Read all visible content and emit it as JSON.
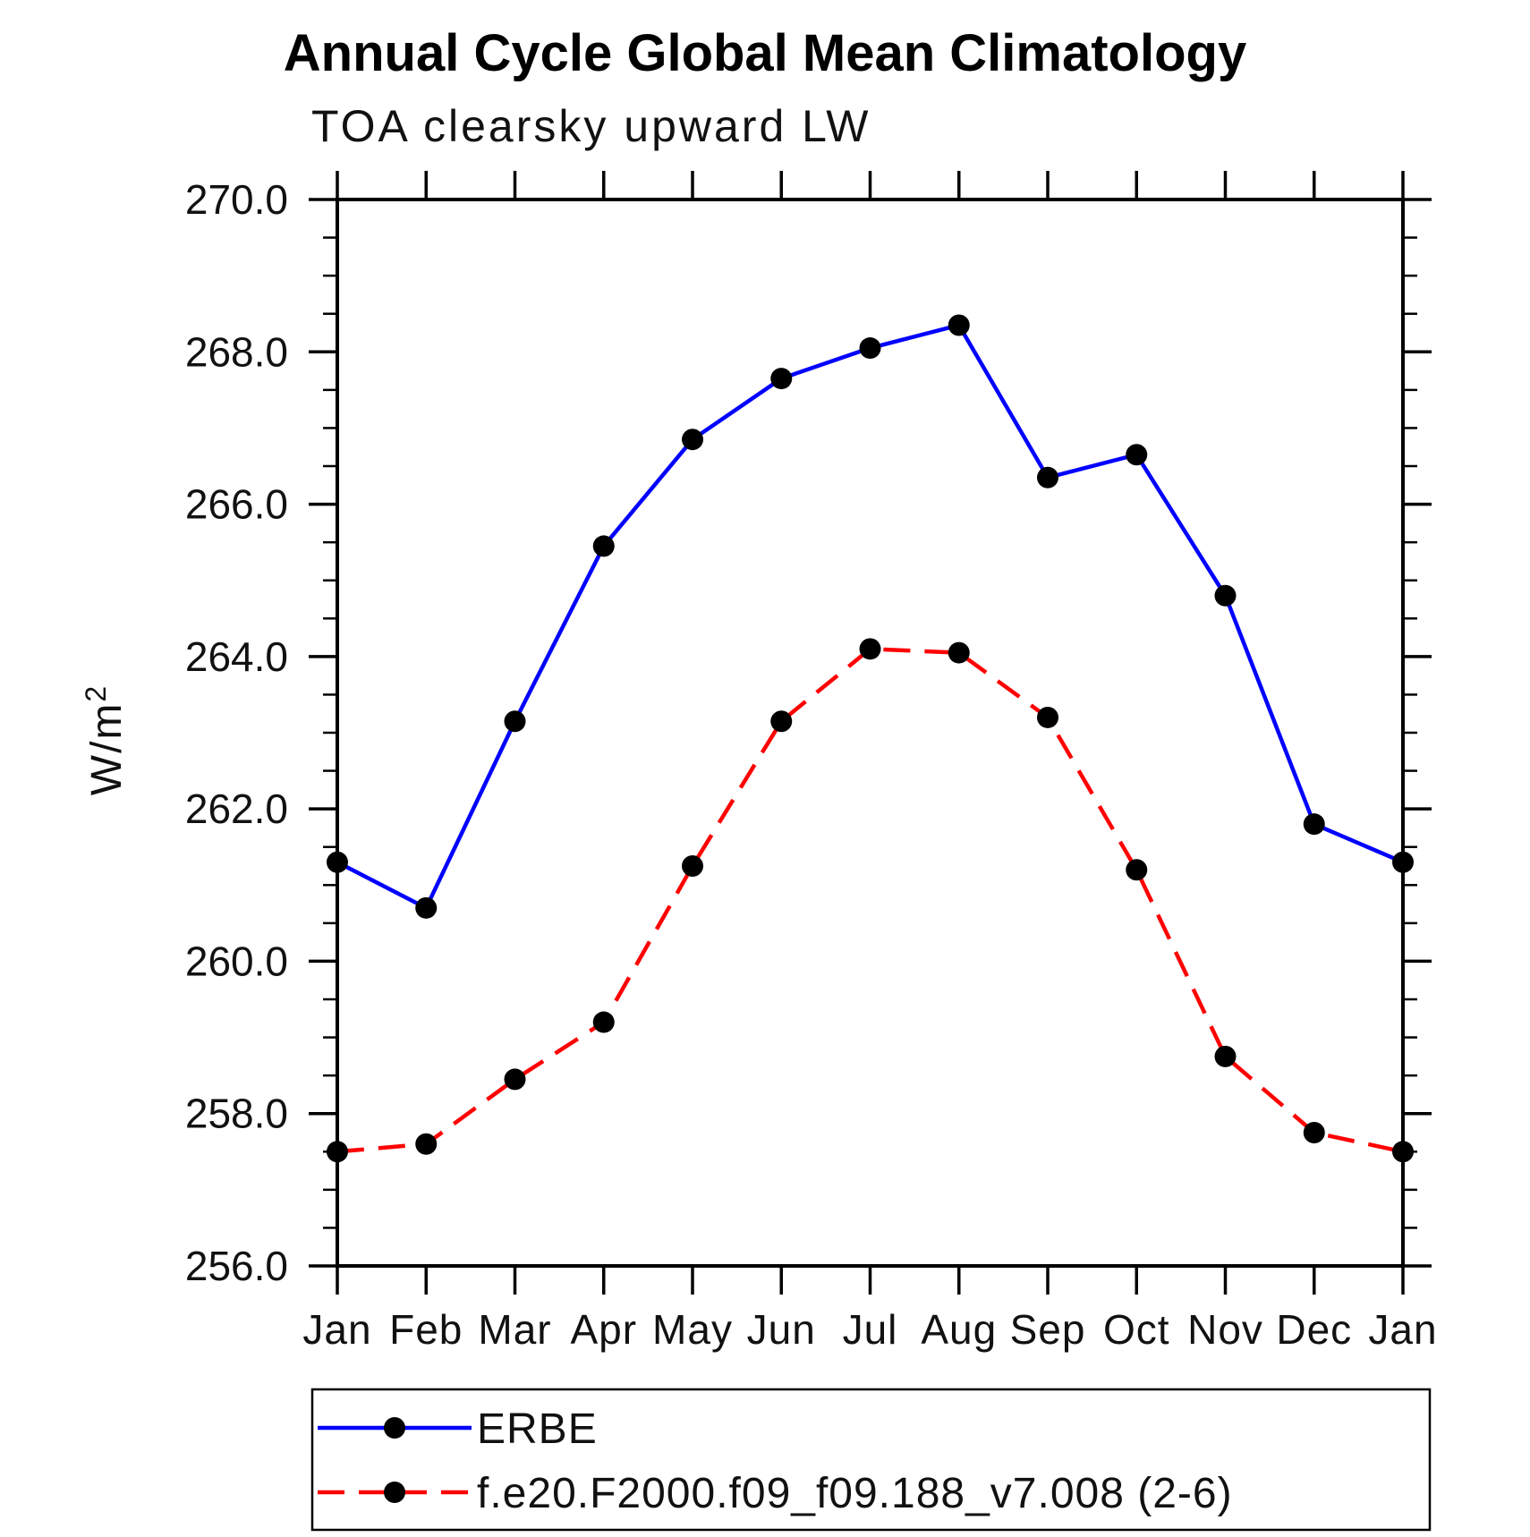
{
  "title": "Annual Cycle Global Mean Climatology",
  "subtitle": "TOA clearsky upward LW",
  "y_axis": {
    "label_base": "W/m",
    "label_exp": "2",
    "label_full": "W/m²",
    "min": 256.0,
    "max": 270.0,
    "major_step": 2.0,
    "minor_step": 0.5,
    "tick_labels": [
      "270.0",
      "268.0",
      "266.0",
      "264.0",
      "262.0",
      "260.0",
      "258.0",
      "256.0"
    ]
  },
  "x_axis": {
    "categories": [
      "Jan",
      "Feb",
      "Mar",
      "Apr",
      "May",
      "Jun",
      "Jul",
      "Aug",
      "Sep",
      "Oct",
      "Nov",
      "Dec",
      "Jan"
    ]
  },
  "legend": {
    "items": [
      {
        "label": "ERBE",
        "color": "#0000ff",
        "line_style": "solid",
        "marker": "black-dot"
      },
      {
        "label": "f.e20.F2000.f09_f09.188_v7.008 (2-6)",
        "color": "#ff0000",
        "line_style": "dashed",
        "marker": "black-dot"
      }
    ]
  },
  "chart_data": {
    "type": "line",
    "title": "Annual Cycle Global Mean Climatology",
    "subtitle": "TOA clearsky upward LW",
    "ylabel": "W/m²",
    "ylim": [
      256.0,
      270.0
    ],
    "grid": false,
    "legend_position": "bottom",
    "x": [
      "Jan",
      "Feb",
      "Mar",
      "Apr",
      "May",
      "Jun",
      "Jul",
      "Aug",
      "Sep",
      "Oct",
      "Nov",
      "Dec",
      "Jan"
    ],
    "series": [
      {
        "name": "ERBE",
        "color": "#0000ff",
        "style": "solid",
        "marker_color": "#000000",
        "values": [
          261.3,
          260.7,
          263.15,
          265.45,
          266.85,
          267.65,
          268.05,
          268.35,
          266.35,
          266.65,
          264.8,
          261.8,
          261.3
        ]
      },
      {
        "name": "f.e20.F2000.f09_f09.188_v7.008 (2-6)",
        "color": "#ff0000",
        "style": "dashed",
        "marker_color": "#000000",
        "values": [
          257.5,
          257.6,
          258.45,
          259.2,
          261.25,
          263.15,
          264.1,
          264.05,
          263.2,
          261.2,
          258.75,
          257.75,
          257.5
        ]
      }
    ]
  }
}
